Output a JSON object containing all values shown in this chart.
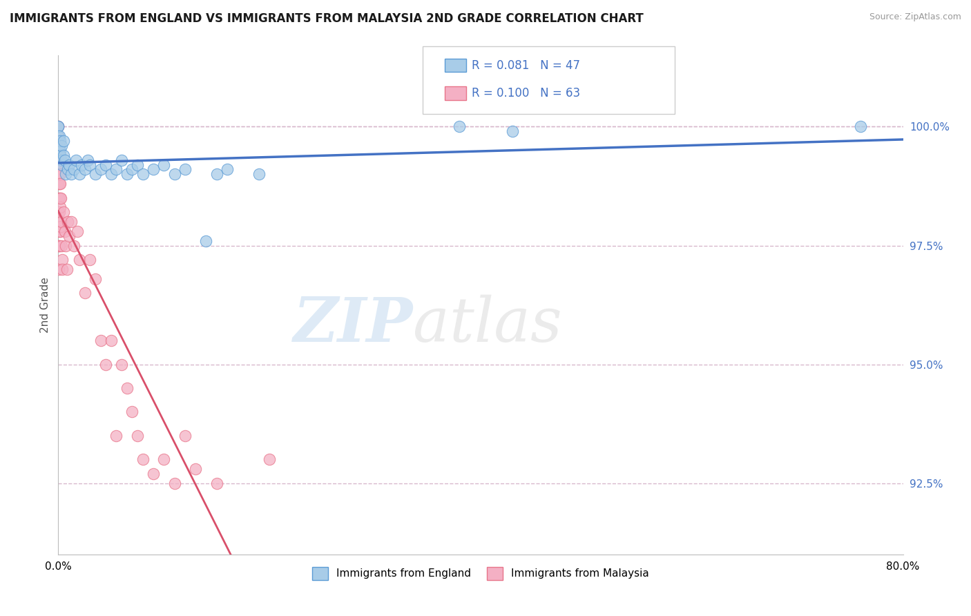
{
  "title": "IMMIGRANTS FROM ENGLAND VS IMMIGRANTS FROM MALAYSIA 2ND GRADE CORRELATION CHART",
  "source": "Source: ZipAtlas.com",
  "ylabel": "2nd Grade",
  "xlim": [
    0.0,
    80.0
  ],
  "ylim": [
    91.0,
    101.5
  ],
  "yticks": [
    92.5,
    95.0,
    97.5,
    100.0
  ],
  "ytick_labels": [
    "92.5%",
    "95.0%",
    "97.5%",
    "100.0%"
  ],
  "xticks": [
    0.0,
    10.0,
    20.0,
    30.0,
    40.0,
    50.0,
    60.0,
    70.0,
    80.0
  ],
  "xtick_labels": [
    "0.0%",
    "",
    "",
    "",
    "",
    "",
    "",
    "",
    "80.0%"
  ],
  "england_R": 0.081,
  "england_N": 47,
  "malaysia_R": 0.1,
  "malaysia_N": 63,
  "england_color": "#a8cce8",
  "malaysia_color": "#f4b0c4",
  "england_edge_color": "#5b9bd5",
  "malaysia_edge_color": "#e8758a",
  "england_trend_color": "#4472c4",
  "malaysia_trend_color": "#d94f6a",
  "england_x": [
    0.0,
    0.0,
    0.0,
    0.0,
    0.1,
    0.1,
    0.15,
    0.2,
    0.2,
    0.3,
    0.3,
    0.4,
    0.5,
    0.5,
    0.6,
    0.7,
    0.9,
    1.0,
    1.2,
    1.5,
    1.7,
    2.0,
    2.2,
    2.5,
    2.8,
    3.0,
    3.5,
    4.0,
    4.5,
    5.0,
    5.5,
    6.0,
    6.5,
    7.0,
    7.5,
    8.0,
    9.0,
    10.0,
    11.0,
    12.0,
    14.0,
    15.0,
    16.0,
    19.0,
    38.0,
    43.0,
    76.0
  ],
  "england_y": [
    99.8,
    100.0,
    100.0,
    99.5,
    99.6,
    99.8,
    99.5,
    99.4,
    99.7,
    99.3,
    99.6,
    99.2,
    99.4,
    99.7,
    99.3,
    99.0,
    99.1,
    99.2,
    99.0,
    99.1,
    99.3,
    99.0,
    99.2,
    99.1,
    99.3,
    99.2,
    99.0,
    99.1,
    99.2,
    99.0,
    99.1,
    99.3,
    99.0,
    99.1,
    99.2,
    99.0,
    99.1,
    99.2,
    99.0,
    99.1,
    97.6,
    99.0,
    99.1,
    99.0,
    100.0,
    99.9,
    100.0
  ],
  "malaysia_x": [
    0.0,
    0.0,
    0.0,
    0.0,
    0.0,
    0.0,
    0.0,
    0.0,
    0.0,
    0.0,
    0.0,
    0.0,
    0.05,
    0.05,
    0.05,
    0.05,
    0.05,
    0.05,
    0.1,
    0.1,
    0.1,
    0.1,
    0.15,
    0.15,
    0.15,
    0.2,
    0.2,
    0.2,
    0.25,
    0.25,
    0.3,
    0.3,
    0.35,
    0.4,
    0.5,
    0.6,
    0.7,
    0.8,
    0.9,
    1.0,
    1.2,
    1.5,
    1.8,
    2.0,
    2.5,
    3.0,
    3.5,
    4.0,
    4.5,
    5.0,
    5.5,
    6.0,
    6.5,
    7.0,
    7.5,
    8.0,
    9.0,
    10.0,
    11.0,
    12.0,
    13.0,
    15.0,
    20.0
  ],
  "malaysia_y": [
    100.0,
    100.0,
    99.8,
    99.6,
    99.4,
    99.2,
    99.0,
    98.8,
    98.5,
    98.2,
    97.8,
    97.5,
    99.5,
    99.0,
    98.5,
    98.0,
    97.5,
    97.0,
    99.2,
    98.8,
    98.2,
    97.5,
    99.0,
    98.5,
    97.8,
    98.8,
    98.3,
    97.8,
    98.5,
    97.9,
    98.0,
    97.5,
    97.2,
    97.0,
    98.2,
    97.8,
    97.5,
    97.0,
    98.0,
    97.7,
    98.0,
    97.5,
    97.8,
    97.2,
    96.5,
    97.2,
    96.8,
    95.5,
    95.0,
    95.5,
    93.5,
    95.0,
    94.5,
    94.0,
    93.5,
    93.0,
    92.7,
    93.0,
    92.5,
    93.5,
    92.8,
    92.5,
    93.0
  ],
  "watermark_zip": "ZIP",
  "watermark_atlas": "atlas",
  "background_color": "#ffffff",
  "grid_color": "#d8b8cc",
  "legend_england_label": "Immigrants from England",
  "legend_malaysia_label": "Immigrants from Malaysia"
}
